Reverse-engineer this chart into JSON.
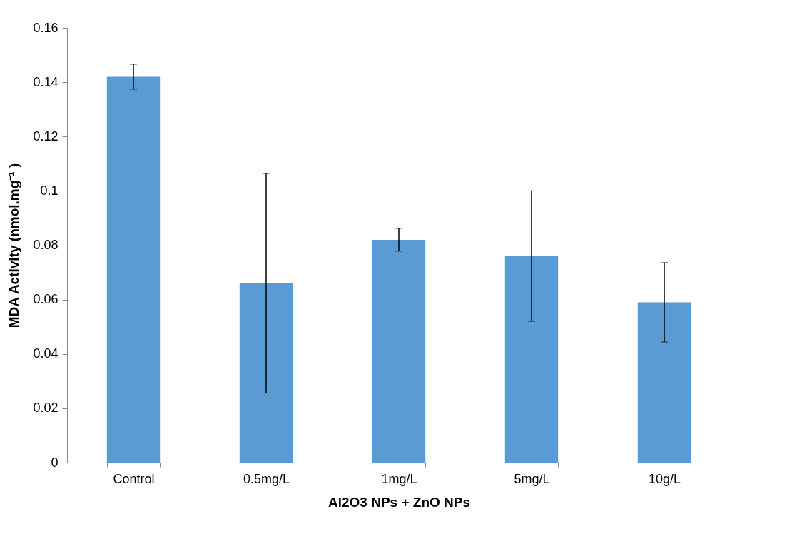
{
  "chart_data": {
    "type": "bar",
    "xlabel": "Al2O3 NPs + ZnO NPs",
    "ylabel": "MDA Activity (nmol.mg⁻¹ )",
    "categories": [
      "Control",
      "0.5mg/L",
      "1mg/L",
      "5mg/L",
      "10g/L"
    ],
    "values": [
      0.142,
      0.066,
      0.082,
      0.076,
      0.059
    ],
    "errors": [
      0.0046,
      0.0404,
      0.0042,
      0.024,
      0.0146
    ],
    "color": "#5b9bd5",
    "ylim": [
      0,
      0.16
    ],
    "yticks": [
      0,
      0.02,
      0.04,
      0.06,
      0.08,
      0.1,
      0.12,
      0.14,
      0.16
    ],
    "grid": false
  }
}
